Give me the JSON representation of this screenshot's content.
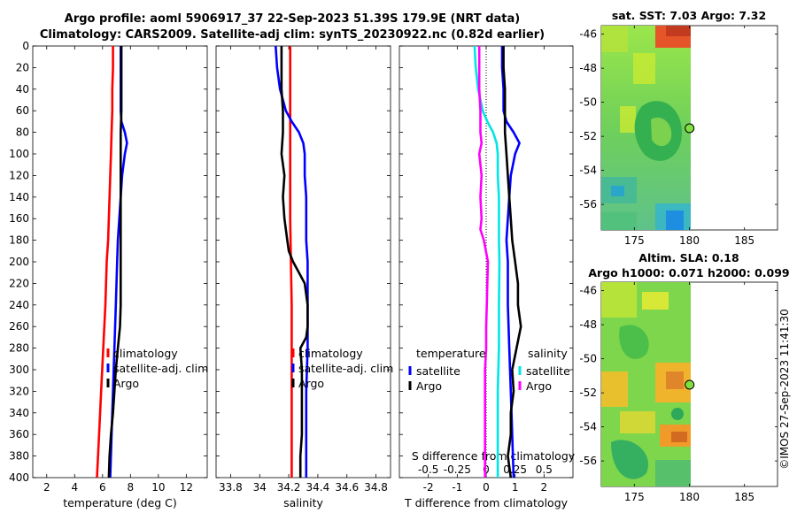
{
  "header": {
    "line1": "Argo profile: aoml 5906917_37 22-Sep-2023 51.39S 179.9E (NRT data)",
    "line2": "Climatology: CARS2009. Satellite-adj clim: synTS_20230922.nc (0.82d earlier)"
  },
  "signature": "©IMOS 27-Sep-2023 11:41:30",
  "colors": {
    "climatology": "#ff0000",
    "satellite": "#0000ff",
    "argo": "#000000",
    "sal_satellite": "#00e5e5",
    "sal_argo": "#ff00ff"
  },
  "chart_data": [
    {
      "type": "line",
      "title": "",
      "xlabel": "temperature (deg C)",
      "ylabel": "",
      "xlim": [
        1,
        13.5
      ],
      "ylim": [
        400,
        0
      ],
      "x_ticks": [
        "2",
        "4",
        "6",
        "8",
        "10",
        "12"
      ],
      "y_ticks": [
        "0",
        "20",
        "40",
        "60",
        "80",
        "100",
        "120",
        "140",
        "160",
        "180",
        "200",
        "220",
        "240",
        "260",
        "280",
        "300",
        "320",
        "340",
        "360",
        "380",
        "400"
      ],
      "legend": [
        "climatology",
        "satellite-adj. clim",
        "Argo"
      ],
      "series": [
        {
          "name": "climatology",
          "depth": [
            0,
            20,
            40,
            60,
            80,
            100,
            120,
            140,
            160,
            180,
            200,
            240,
            280,
            320,
            360,
            400
          ],
          "values": [
            6.75,
            6.75,
            6.7,
            6.7,
            6.65,
            6.6,
            6.55,
            6.5,
            6.45,
            6.4,
            6.3,
            6.2,
            6.05,
            5.9,
            5.75,
            5.6
          ]
        },
        {
          "name": "satellite-adj. clim",
          "depth": [
            0,
            20,
            40,
            60,
            70,
            80,
            90,
            100,
            120,
            140,
            160,
            180,
            200,
            240,
            280,
            320,
            360,
            400
          ],
          "values": [
            7.3,
            7.3,
            7.3,
            7.3,
            7.35,
            7.6,
            7.75,
            7.6,
            7.4,
            7.3,
            7.2,
            7.1,
            7.05,
            6.95,
            6.85,
            6.75,
            6.65,
            6.55
          ]
        },
        {
          "name": "Argo",
          "depth": [
            0,
            20,
            40,
            60,
            80,
            100,
            120,
            140,
            160,
            180,
            200,
            220,
            240,
            260,
            280,
            300,
            320,
            340,
            360,
            380,
            400
          ],
          "values": [
            7.35,
            7.35,
            7.35,
            7.35,
            7.3,
            7.3,
            7.3,
            7.3,
            7.3,
            7.3,
            7.3,
            7.3,
            7.3,
            7.25,
            7.1,
            6.95,
            6.85,
            6.75,
            6.6,
            6.5,
            6.45
          ]
        }
      ]
    },
    {
      "type": "line",
      "title": "",
      "xlabel": "salinity",
      "ylabel": "",
      "xlim": [
        33.7,
        34.9
      ],
      "ylim": [
        400,
        0
      ],
      "x_ticks": [
        "33.8",
        "34",
        "34.2",
        "34.4",
        "34.6",
        "34.8"
      ],
      "legend": [
        "climatology",
        "satellite-adj. clim",
        "Argo"
      ],
      "series": [
        {
          "name": "climatology",
          "depth": [
            0,
            40,
            80,
            120,
            160,
            200,
            240,
            280,
            320,
            360,
            400
          ],
          "values": [
            34.21,
            34.21,
            34.21,
            34.21,
            34.21,
            34.215,
            34.22,
            34.22,
            34.22,
            34.22,
            34.22
          ]
        },
        {
          "name": "satellite-adj. clim",
          "depth": [
            0,
            20,
            40,
            60,
            70,
            80,
            90,
            100,
            120,
            140,
            160,
            180,
            200,
            240,
            280,
            320,
            360,
            400
          ],
          "values": [
            34.11,
            34.12,
            34.14,
            34.18,
            34.22,
            34.27,
            34.3,
            34.31,
            34.31,
            34.32,
            34.32,
            34.32,
            34.33,
            34.33,
            34.33,
            34.32,
            34.32,
            34.32
          ]
        },
        {
          "name": "Argo",
          "depth": [
            0,
            20,
            40,
            60,
            80,
            100,
            120,
            140,
            160,
            180,
            190,
            200,
            210,
            220,
            240,
            260,
            270,
            280,
            300,
            320,
            340,
            360,
            380,
            400
          ],
          "values": [
            34.15,
            34.15,
            34.15,
            34.16,
            34.16,
            34.15,
            34.17,
            34.16,
            34.17,
            34.19,
            34.2,
            34.23,
            34.27,
            34.31,
            34.33,
            34.33,
            34.32,
            34.28,
            34.29,
            34.29,
            34.29,
            34.29,
            34.28,
            34.28
          ]
        }
      ]
    },
    {
      "type": "line",
      "title": "",
      "xlabel": "T difference from climatology",
      "x2label": "S difference from climatology",
      "ylabel": "",
      "xlim": [
        -3,
        3
      ],
      "x2lim": [
        -0.75,
        0.75
      ],
      "ylim": [
        400,
        0
      ],
      "x_ticks": [
        "-2",
        "-1",
        "0",
        "1",
        "2"
      ],
      "x2_ticks": [
        "-0.5",
        "-0.25",
        "0",
        "0.25",
        "0.5"
      ],
      "legend_groups": [
        {
          "title": "temperature",
          "entries": [
            "satellite",
            "Argo"
          ]
        },
        {
          "title": "salinity",
          "entries": [
            "satellite",
            "Argo"
          ]
        }
      ],
      "series": [
        {
          "name": "temperature satellite",
          "depth": [
            0,
            20,
            40,
            60,
            70,
            80,
            90,
            100,
            120,
            140,
            160,
            180,
            200,
            240,
            280,
            320,
            360,
            400
          ],
          "values": [
            0.55,
            0.55,
            0.6,
            0.6,
            0.7,
            0.95,
            1.15,
            1.0,
            0.85,
            0.8,
            0.75,
            0.7,
            0.75,
            0.75,
            0.8,
            0.85,
            0.9,
            0.95
          ]
        },
        {
          "name": "temperature Argo",
          "depth": [
            0,
            20,
            40,
            60,
            80,
            100,
            120,
            140,
            160,
            180,
            200,
            220,
            240,
            260,
            280,
            300,
            320,
            340,
            360,
            380,
            400
          ],
          "values": [
            0.6,
            0.6,
            0.65,
            0.65,
            0.65,
            0.7,
            0.75,
            0.8,
            0.85,
            0.9,
            1.0,
            1.1,
            1.1,
            1.2,
            1.05,
            0.9,
            0.95,
            0.85,
            0.85,
            0.75,
            0.85
          ]
        },
        {
          "name": "salinity satellite",
          "depth": [
            0,
            20,
            40,
            60,
            70,
            80,
            90,
            100,
            120,
            140,
            160,
            180,
            200,
            240,
            280,
            320,
            360,
            400
          ],
          "values": [
            -0.1,
            -0.09,
            -0.07,
            -0.03,
            0.01,
            0.06,
            0.09,
            0.1,
            0.1,
            0.11,
            0.11,
            0.11,
            0.115,
            0.11,
            0.11,
            0.1,
            0.1,
            0.1
          ]
        },
        {
          "name": "salinity Argo",
          "depth": [
            0,
            20,
            40,
            60,
            80,
            90,
            100,
            120,
            140,
            160,
            170,
            180,
            200,
            220,
            240,
            260,
            280,
            300,
            320,
            340,
            360,
            380,
            400
          ],
          "values": [
            -0.06,
            -0.06,
            -0.06,
            -0.05,
            -0.05,
            -0.04,
            -0.06,
            -0.04,
            -0.05,
            -0.04,
            -0.05,
            -0.02,
            0.015,
            0.01,
            0.005,
            0.0,
            0.0,
            -0.01,
            -0.01,
            -0.01,
            -0.01,
            -0.01,
            -0.01
          ]
        }
      ]
    },
    {
      "type": "heatmap",
      "title": "sat. SST: 7.03  Argo: 7.32",
      "xlim": [
        172,
        188
      ],
      "ylim": [
        -57.5,
        -45.5
      ],
      "x_ticks": [
        "175",
        "180",
        "185"
      ],
      "y_ticks": [
        "-46",
        "-48",
        "-50",
        "-52",
        "-54",
        "-56"
      ],
      "argo_position": {
        "lon": 179.9,
        "lat": -51.39
      }
    },
    {
      "type": "heatmap",
      "title": "Altim. SLA: 0.18",
      "subtitle": "Argo h1000: 0.071  h2000: 0.099",
      "xlim": [
        172,
        188
      ],
      "ylim": [
        -57.5,
        -45.5
      ],
      "x_ticks": [
        "175",
        "180",
        "185"
      ],
      "y_ticks": [
        "-46",
        "-48",
        "-50",
        "-52",
        "-54",
        "-56"
      ],
      "argo_position": {
        "lon": 179.9,
        "lat": -51.39
      }
    }
  ]
}
